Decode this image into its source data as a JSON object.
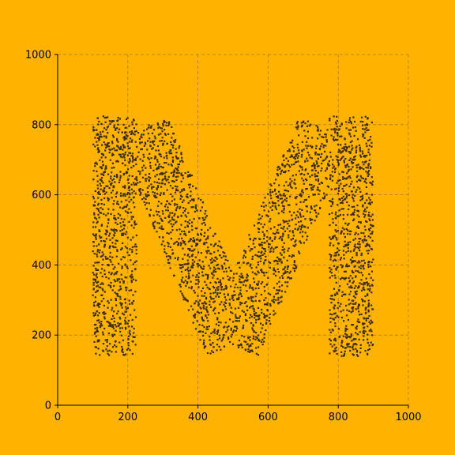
{
  "chart_data": {
    "type": "scatter",
    "title": "",
    "xlabel": "",
    "ylabel": "",
    "xlim": [
      0,
      1000
    ],
    "ylim": [
      0,
      1000
    ],
    "x_ticks": [
      0,
      200,
      400,
      600,
      800,
      1000
    ],
    "y_ticks": [
      0,
      200,
      400,
      600,
      800,
      1000
    ],
    "x_tick_labels": [
      "0",
      "200",
      "400",
      "600",
      "800",
      "1000"
    ],
    "y_tick_labels": [
      "0",
      "200",
      "400",
      "600",
      "800",
      "1000"
    ],
    "grid": true,
    "background_color": "#FFB300",
    "point_color": "#3a2a00",
    "approx_point_count": 3500,
    "shape_regions": [
      {
        "kind": "rect",
        "x": [
          100,
          225
        ],
        "y": [
          140,
          825
        ]
      },
      {
        "kind": "rect",
        "x": [
          775,
          900
        ],
        "y": [
          140,
          825
        ]
      },
      {
        "kind": "band",
        "from": [
          240,
          790
        ],
        "to": [
          500,
          170
        ],
        "half_width": 80
      },
      {
        "kind": "band",
        "from": [
          500,
          170
        ],
        "to": [
          760,
          790
        ],
        "half_width": 80
      }
    ]
  }
}
